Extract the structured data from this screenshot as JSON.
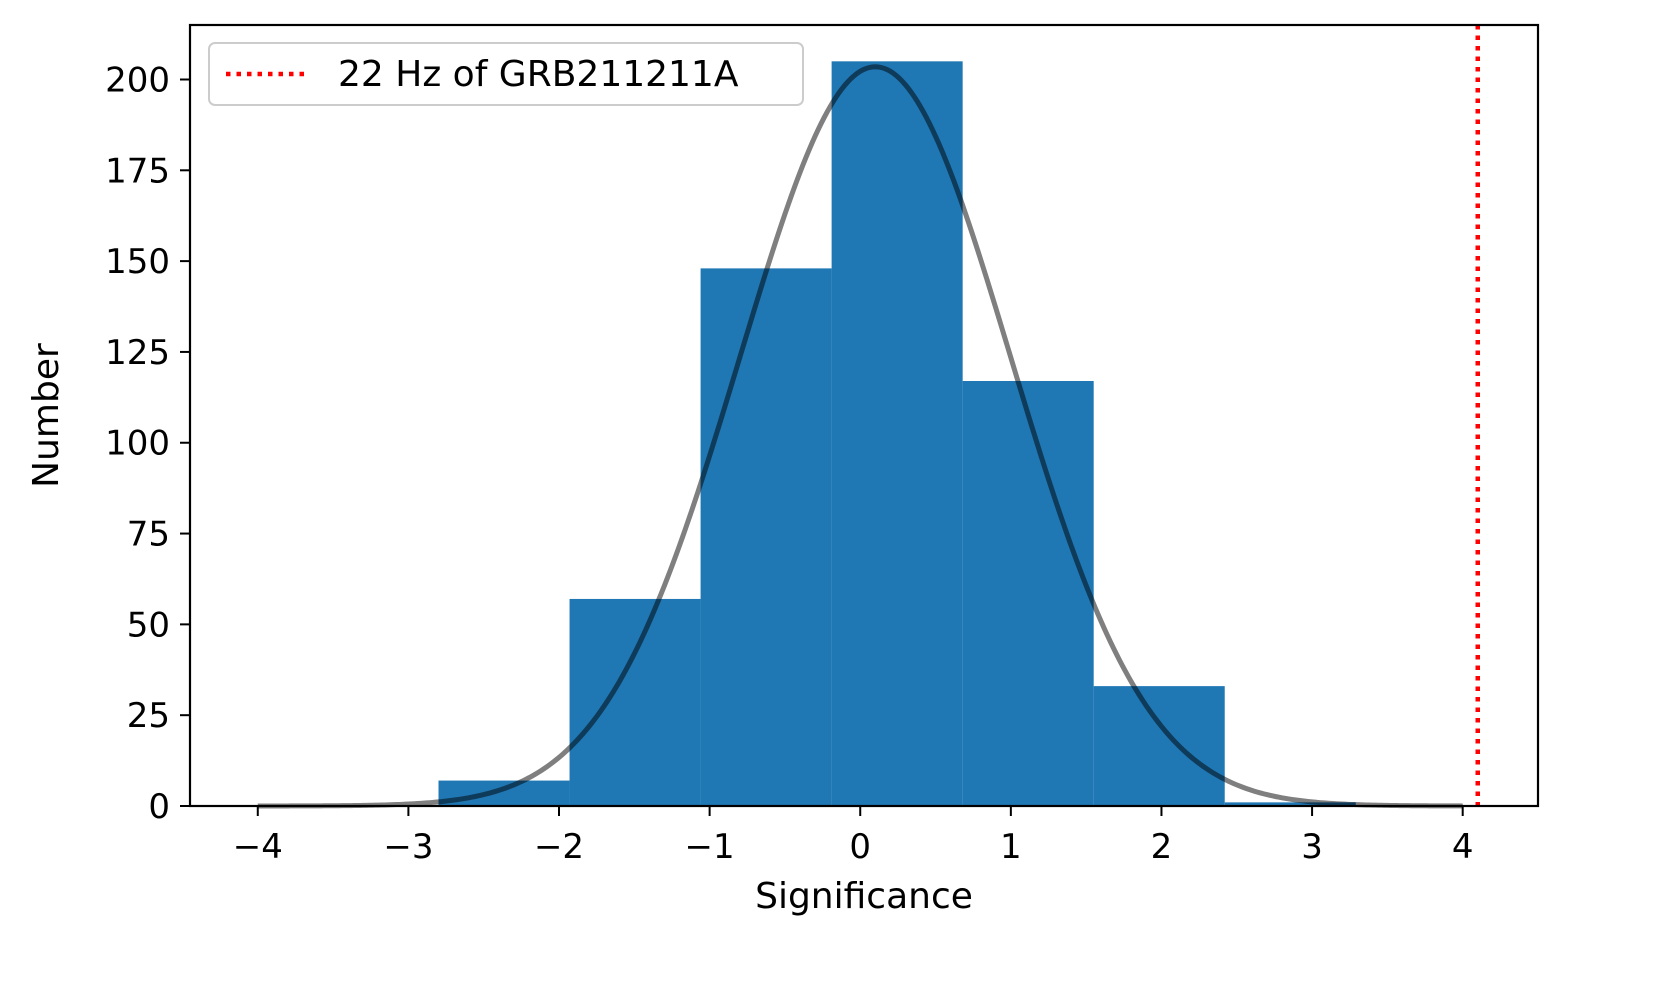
{
  "chart_data": {
    "type": "bar",
    "subtype": "histogram",
    "xlabel": "Significance",
    "ylabel": "Number",
    "xlim": [
      -4.45,
      4.5
    ],
    "ylim": [
      0,
      215
    ],
    "xticks": [
      -4,
      -3,
      -2,
      -1,
      0,
      1,
      2,
      3,
      4
    ],
    "xtick_labels": [
      "−4",
      "−3",
      "−2",
      "−1",
      "0",
      "1",
      "2",
      "3",
      "4"
    ],
    "yticks": [
      0,
      25,
      50,
      75,
      100,
      125,
      150,
      175,
      200
    ],
    "ytick_labels": [
      "0",
      "25",
      "50",
      "75",
      "100",
      "125",
      "150",
      "175",
      "200"
    ],
    "grid": false,
    "bars": {
      "bin_edges": [
        -2.8,
        -1.93,
        -1.06,
        -0.19,
        0.68,
        1.55,
        2.42,
        3.29
      ],
      "counts": [
        7,
        57,
        148,
        205,
        117,
        33,
        1
      ],
      "color": "#1f77b4"
    },
    "fit_curve": {
      "type": "gaussian",
      "amplitude": 203.5,
      "mean": 0.1,
      "sigma": 0.9,
      "x_range": [
        -4,
        4
      ],
      "color": "#808080"
    },
    "vline": {
      "x": 4.1,
      "color": "#ff0000",
      "style": "dotted",
      "label": "22 Hz of GRB211211A"
    },
    "legend": {
      "placement": "upper-left",
      "entries": [
        "22 Hz of GRB211211A"
      ]
    }
  }
}
